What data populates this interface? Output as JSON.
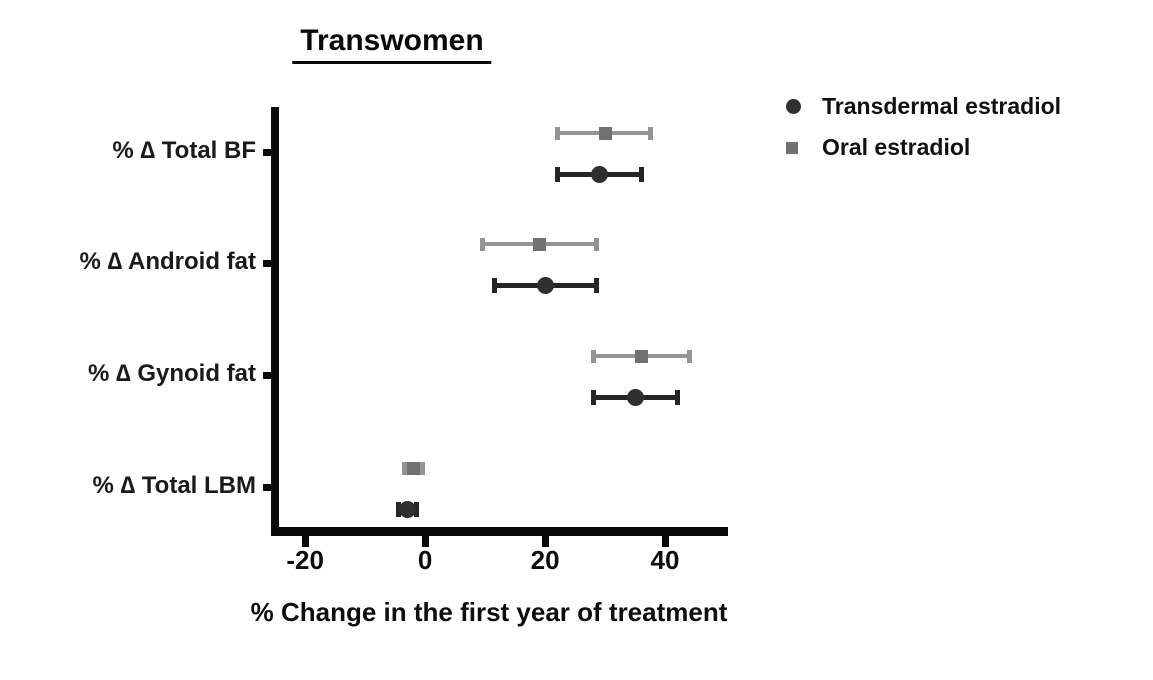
{
  "page": {
    "background": "#ffffff"
  },
  "chart_data": {
    "type": "scatter",
    "title": "Transwomen",
    "xlabel": "% Change in the first year of treatment",
    "categories": [
      "% ∆ Total BF",
      "% ∆ Android fat",
      "% ∆ Gynoid fat",
      "% ∆ Total LBM"
    ],
    "xticks": [
      -20,
      0,
      20,
      40
    ],
    "xlim": [
      -25.7,
      50.5
    ],
    "grid": false,
    "legend_position": "top-right",
    "axis_color": "#0a0a0a",
    "series": [
      {
        "name": "Transdermal estradiol",
        "marker": "circle",
        "marker_color": "#2f2f2f",
        "line_color": "#262626",
        "values": [
          29,
          20,
          35,
          -3
        ],
        "ci_low": [
          22,
          11.5,
          28,
          -4.5
        ],
        "ci_high": [
          36,
          28.5,
          42,
          -1.5
        ]
      },
      {
        "name": "Oral estradiol",
        "marker": "square",
        "marker_color": "#717171",
        "line_color": "#949494",
        "values": [
          30,
          19,
          36,
          -2
        ],
        "ci_low": [
          22,
          9.5,
          28,
          -3.5
        ],
        "ci_high": [
          37.5,
          28.5,
          44,
          -0.5
        ]
      }
    ]
  }
}
